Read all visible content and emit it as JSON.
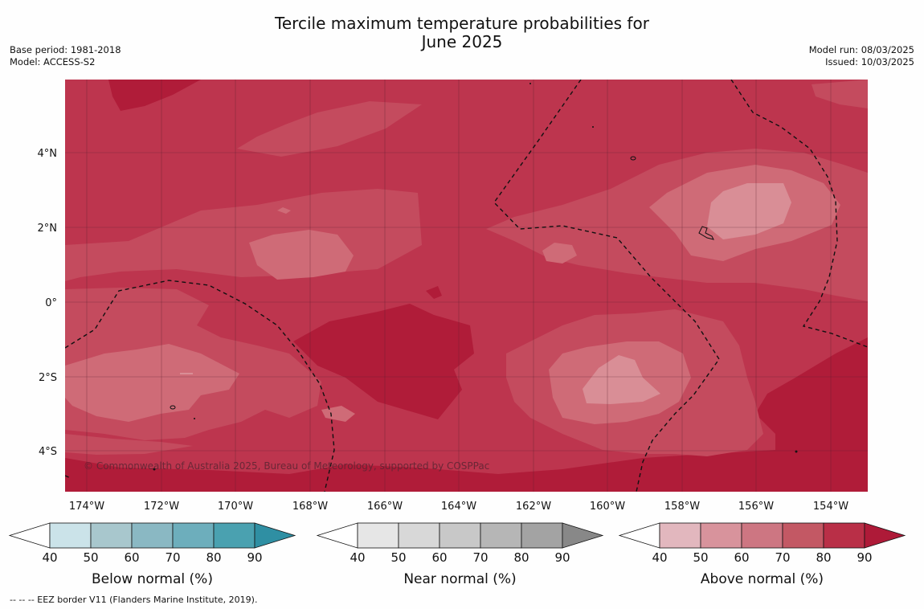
{
  "title_line1": "Tercile maximum temperature probabilities for",
  "title_line2": "June 2025",
  "base_period": "Base period: 1981-2018",
  "model": "Model: ACCESS-S2",
  "model_run": "Model run: 08/03/2025",
  "issued": "Issued: 10/03/2025",
  "copyright": "© Commonwealth of Australia 2025, Bureau of Meteorology, supported by COSPPac",
  "footnote": "--  --  -- EEZ border V11 (Flanders Marine Institute, 2019).",
  "map": {
    "lon_labels": [
      "174°W",
      "172°W",
      "170°W",
      "168°W",
      "166°W",
      "164°W",
      "162°W",
      "160°W",
      "158°W",
      "156°W",
      "154°W"
    ],
    "lat_labels": [
      "4°N",
      "2°N",
      "0°",
      "2°S",
      "4°S"
    ],
    "colors": {
      "above_80_90": "#b01c39",
      "above_70_80": "#bd354e",
      "above_60_70": "#c44b5e",
      "above_50_60": "#cf6b77",
      "above_40_50": "#d98e96"
    }
  },
  "colorbars": [
    {
      "label": "Below normal (%)",
      "ticks": [
        "40",
        "50",
        "60",
        "70",
        "80",
        "90"
      ],
      "colors": [
        "#cbe3e9",
        "#a8c7cd",
        "#8ab8c3",
        "#6daebc",
        "#4aa1b0",
        "#2f8fa3"
      ]
    },
    {
      "label": "Near normal (%)",
      "ticks": [
        "40",
        "50",
        "60",
        "70",
        "80",
        "90"
      ],
      "colors": [
        "#e6e6e6",
        "#d8d8d8",
        "#c8c8c8",
        "#b6b6b6",
        "#a3a3a3",
        "#888888"
      ]
    },
    {
      "label": "Above normal (%)",
      "ticks": [
        "40",
        "50",
        "60",
        "70",
        "80",
        "90"
      ],
      "colors": [
        "#e2b7be",
        "#d8939c",
        "#cd7682",
        "#c35864",
        "#b92f47",
        "#ae1a38"
      ]
    }
  ]
}
